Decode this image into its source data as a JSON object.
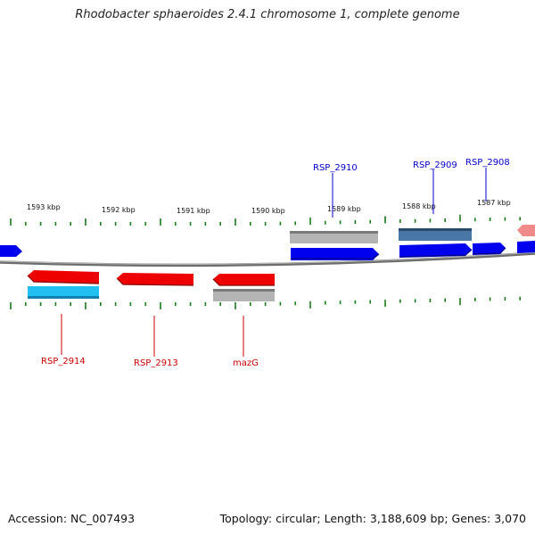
{
  "title": "Rhodobacter sphaeroides 2.4.1 chromosome 1, complete genome",
  "footer": {
    "accession": "Accession: NC_007493",
    "summary": "Topology: circular; Length: 3,188,609 bp; Genes: 3,070"
  },
  "colors": {
    "tick": "#1a7a1a",
    "backbone": "#808080",
    "forward_label": "#0000cc",
    "reverse_label": "#cc0000",
    "blue": "#0000ee",
    "light_blue": "#22c0f0",
    "steel_blue": "#3f6fa0",
    "red": "#ee0000",
    "grey": "#b0b0b0",
    "pink": "#f08080"
  },
  "scale": {
    "labels": [
      "1593 kbp",
      "1592 kbp",
      "1591 kbp",
      "1590 kbp",
      "1589 kbp",
      "1588 kbp",
      "1587 kbp"
    ]
  },
  "genes": {
    "labeled": [
      {
        "name": "RSP_2910",
        "strand": "forward"
      },
      {
        "name": "RSP_2909",
        "strand": "forward"
      },
      {
        "name": "RSP_2908",
        "strand": "forward"
      },
      {
        "name": "RSP_2914",
        "strand": "reverse"
      },
      {
        "name": "RSP_2913",
        "strand": "reverse"
      },
      {
        "name": "mazG",
        "strand": "reverse"
      }
    ]
  }
}
